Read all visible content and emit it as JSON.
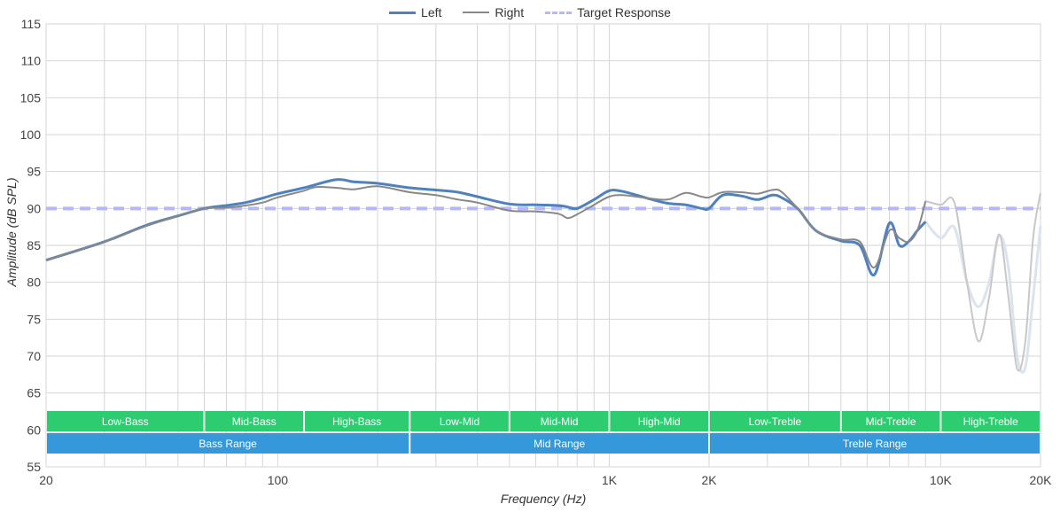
{
  "chart_data": {
    "type": "line",
    "xlabel": "Frequency (Hz)",
    "ylabel": "Amplitude (dB SPL)",
    "xscale": "log",
    "xlim": [
      20,
      20000
    ],
    "ylim": [
      55,
      115
    ],
    "grid": true,
    "legend_position": "top-center",
    "x_tick_labels": [
      {
        "value": 20,
        "label": "20"
      },
      {
        "value": 100,
        "label": "100"
      },
      {
        "value": 1000,
        "label": "1K"
      },
      {
        "value": 2000,
        "label": "2K"
      },
      {
        "value": 10000,
        "label": "10K"
      },
      {
        "value": 20000,
        "label": "20K"
      }
    ],
    "y_ticks": [
      55,
      60,
      65,
      70,
      75,
      80,
      85,
      90,
      95,
      100,
      105,
      110,
      115
    ],
    "series": [
      {
        "name": "Left",
        "color": "#4e81bd",
        "x": [
          20,
          30,
          40,
          50,
          60,
          70,
          80,
          90,
          100,
          120,
          150,
          170,
          200,
          250,
          300,
          350,
          400,
          500,
          600,
          700,
          750,
          800,
          900,
          1000,
          1100,
          1300,
          1500,
          1700,
          1900,
          2000,
          2200,
          2500,
          2800,
          3100,
          3300,
          3700,
          4200,
          5000,
          5700,
          6300,
          7000,
          7500,
          8000,
          8500,
          9000
        ],
        "y": [
          83.0,
          85.5,
          87.7,
          89.0,
          90.0,
          90.4,
          90.8,
          91.4,
          92.0,
          92.8,
          93.9,
          93.6,
          93.4,
          92.8,
          92.5,
          92.2,
          91.6,
          90.6,
          90.5,
          90.4,
          90.2,
          90.0,
          91.2,
          92.4,
          92.3,
          91.4,
          90.7,
          90.5,
          90.0,
          90.0,
          91.8,
          91.7,
          91.2,
          91.8,
          91.5,
          90.0,
          87.0,
          85.6,
          85.0,
          81.0,
          88.0,
          85.0,
          85.5,
          87.0,
          88.2
        ]
      },
      {
        "name": "Right",
        "color": "#888888",
        "x": [
          20,
          30,
          40,
          50,
          60,
          70,
          80,
          90,
          100,
          120,
          130,
          150,
          170,
          200,
          250,
          300,
          350,
          400,
          500,
          600,
          700,
          750,
          800,
          900,
          1000,
          1100,
          1300,
          1500,
          1700,
          1900,
          2000,
          2200,
          2500,
          2800,
          3100,
          3300,
          3700,
          4200,
          5000,
          5700,
          6300,
          7000,
          7500,
          8000,
          8500,
          9000
        ],
        "y": [
          83.0,
          85.5,
          87.6,
          89.0,
          90.0,
          90.1,
          90.4,
          90.8,
          91.5,
          92.4,
          92.9,
          92.8,
          92.6,
          93.0,
          92.2,
          91.8,
          91.2,
          90.8,
          89.7,
          89.6,
          89.3,
          88.7,
          89.2,
          90.5,
          91.6,
          91.8,
          91.4,
          91.2,
          92.1,
          91.6,
          91.5,
          92.2,
          92.2,
          92.0,
          92.5,
          92.3,
          90.0,
          87.0,
          85.8,
          85.5,
          82.0,
          87.0,
          86.0,
          85.5,
          87.0,
          91.0
        ]
      },
      {
        "name": "Target Response",
        "color": "#b4b8f8",
        "x": [
          20,
          20000
        ],
        "y": [
          90,
          90
        ]
      }
    ],
    "high_frequency_extension": [
      {
        "series": "Left",
        "x": [
          9000,
          10000,
          11000,
          12000,
          13000,
          14000,
          15000,
          16000,
          17000,
          18000,
          19000,
          20000
        ],
        "y": [
          88.2,
          86.0,
          87.4,
          80.0,
          76.7,
          80.0,
          86.3,
          82.0,
          70.0,
          68.5,
          78.0,
          87.6
        ]
      },
      {
        "series": "Right",
        "x": [
          9000,
          10000,
          11000,
          12000,
          13000,
          14000,
          15000,
          16000,
          17000,
          18000,
          19000,
          20000
        ],
        "y": [
          91.0,
          90.5,
          90.8,
          80.0,
          72.0,
          78.0,
          86.5,
          78.0,
          68.3,
          72.0,
          86.0,
          92.1
        ]
      }
    ],
    "range_bands": [
      {
        "label": "Low-Bass",
        "from": 20,
        "to": 60,
        "row": 1,
        "color": "#2ecc71"
      },
      {
        "label": "Mid-Bass",
        "from": 60,
        "to": 120,
        "row": 1,
        "color": "#2ecc71"
      },
      {
        "label": "High-Bass",
        "from": 120,
        "to": 250,
        "row": 1,
        "color": "#2ecc71"
      },
      {
        "label": "Low-Mid",
        "from": 250,
        "to": 500,
        "row": 1,
        "color": "#2ecc71"
      },
      {
        "label": "Mid-Mid",
        "from": 500,
        "to": 1000,
        "row": 1,
        "color": "#2ecc71"
      },
      {
        "label": "High-Mid",
        "from": 1000,
        "to": 2000,
        "row": 1,
        "color": "#2ecc71"
      },
      {
        "label": "Low-Treble",
        "from": 2000,
        "to": 5000,
        "row": 1,
        "color": "#2ecc71"
      },
      {
        "label": "Mid-Treble",
        "from": 5000,
        "to": 10000,
        "row": 1,
        "color": "#2ecc71"
      },
      {
        "label": "High-Treble",
        "from": 10000,
        "to": 20000,
        "row": 1,
        "color": "#2ecc71"
      },
      {
        "label": "Bass Range",
        "from": 20,
        "to": 250,
        "row": 2,
        "color": "#3498db"
      },
      {
        "label": "Mid Range",
        "from": 250,
        "to": 2000,
        "row": 2,
        "color": "#3498db"
      },
      {
        "label": "Treble Range",
        "from": 2000,
        "to": 20000,
        "row": 2,
        "color": "#3498db"
      }
    ]
  },
  "legend": {
    "left_label": "Left",
    "right_label": "Right",
    "target_label": "Target Response"
  }
}
